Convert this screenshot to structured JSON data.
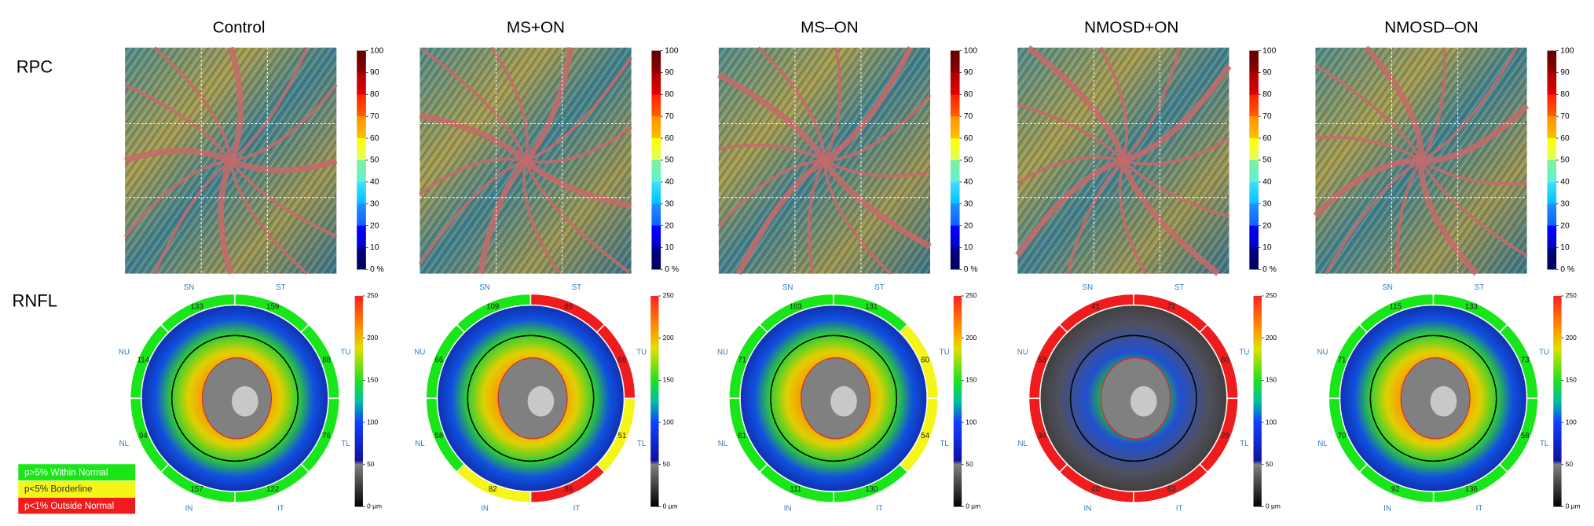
{
  "column_titles": [
    "Control",
    "MS+ON",
    "MS–ON",
    "NMOSD+ON",
    "NMOSD–ON"
  ],
  "row_labels": [
    "RPC",
    "RNFL"
  ],
  "rpc_colorbar": {
    "ticks": [
      {
        "value": 0,
        "label": "0 %"
      },
      10,
      20,
      30,
      40,
      50,
      60,
      70,
      80,
      90,
      100
    ]
  },
  "rnfl_colorbar": {
    "ticks": [
      {
        "value": 0,
        "label": "0 µm"
      },
      50,
      100,
      150,
      200,
      250
    ]
  },
  "sector_names": [
    "NU",
    "SN",
    "ST",
    "TU",
    "TL",
    "IT",
    "IN",
    "NL"
  ],
  "panels": [
    {
      "sectors": [
        114,
        133,
        159,
        88,
        76,
        122,
        157,
        94
      ],
      "sector_colors": [
        "#19e619",
        "#19e619",
        "#19e619",
        "#19e619",
        "#19e619",
        "#19e619",
        "#19e619",
        "#19e619"
      ]
    },
    {
      "sectors": [
        66,
        109,
        86,
        66,
        51,
        86,
        82,
        58
      ],
      "sector_colors": [
        "#19e619",
        "#19e619",
        "#ee1c1c",
        "#ee1c1c",
        "#f5f51a",
        "#ee1c1c",
        "#f5f51a",
        "#19e619"
      ]
    },
    {
      "sectors": [
        71,
        103,
        131,
        60,
        54,
        130,
        111,
        61
      ],
      "sector_colors": [
        "#19e619",
        "#19e619",
        "#19e619",
        "#f5f51a",
        "#f5f51a",
        "#19e619",
        "#19e619",
        "#19e619"
      ]
    },
    {
      "sectors": [
        53,
        41,
        72,
        60,
        29,
        63,
        40,
        34
      ],
      "sector_colors": [
        "#ee1c1c",
        "#ee1c1c",
        "#ee1c1c",
        "#ee1c1c",
        "#ee1c1c",
        "#ee1c1c",
        "#ee1c1c",
        "#ee1c1c"
      ]
    },
    {
      "sectors": [
        71,
        115,
        133,
        73,
        58,
        136,
        92,
        70
      ],
      "sector_colors": [
        "#19e619",
        "#19e619",
        "#19e619",
        "#19e619",
        "#19e619",
        "#19e619",
        "#19e619",
        "#19e619"
      ]
    }
  ],
  "legend": [
    {
      "label": "p>5% Within Normal",
      "color": "#19e619"
    },
    {
      "label": "p<5% Borderline",
      "color": "#f5f51a"
    },
    {
      "label": "p<1% Outside Normal",
      "color": "#ee1c1c"
    }
  ]
}
